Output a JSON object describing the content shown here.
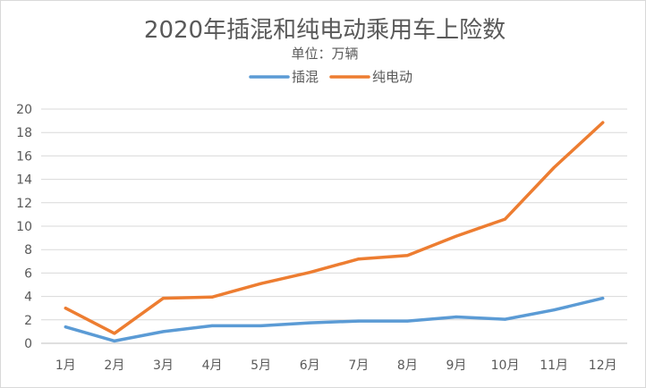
{
  "chart_data": {
    "type": "line",
    "title": "2020年插混和纯电动乘用车上险数",
    "subtitle": "单位：万辆",
    "xlabel": "",
    "ylabel": "",
    "categories": [
      "1月",
      "2月",
      "3月",
      "4月",
      "5月",
      "6月",
      "7月",
      "8月",
      "9月",
      "10月",
      "11月",
      "12月"
    ],
    "series": [
      {
        "name": "插混",
        "color": "#5b9bd5",
        "values": [
          1.4,
          0.2,
          1.0,
          1.5,
          1.5,
          1.75,
          1.9,
          1.9,
          2.25,
          2.05,
          2.85,
          3.85
        ]
      },
      {
        "name": "纯电动",
        "color": "#ed7d31",
        "values": [
          3.0,
          0.85,
          3.85,
          3.95,
          5.1,
          6.05,
          7.2,
          7.5,
          9.15,
          10.6,
          15.0,
          18.85
        ]
      }
    ],
    "ylim": [
      0,
      20
    ],
    "yticks": [
      0,
      2,
      4,
      6,
      8,
      10,
      12,
      14,
      16,
      18,
      20
    ],
    "grid": true,
    "legend": "top-center"
  }
}
